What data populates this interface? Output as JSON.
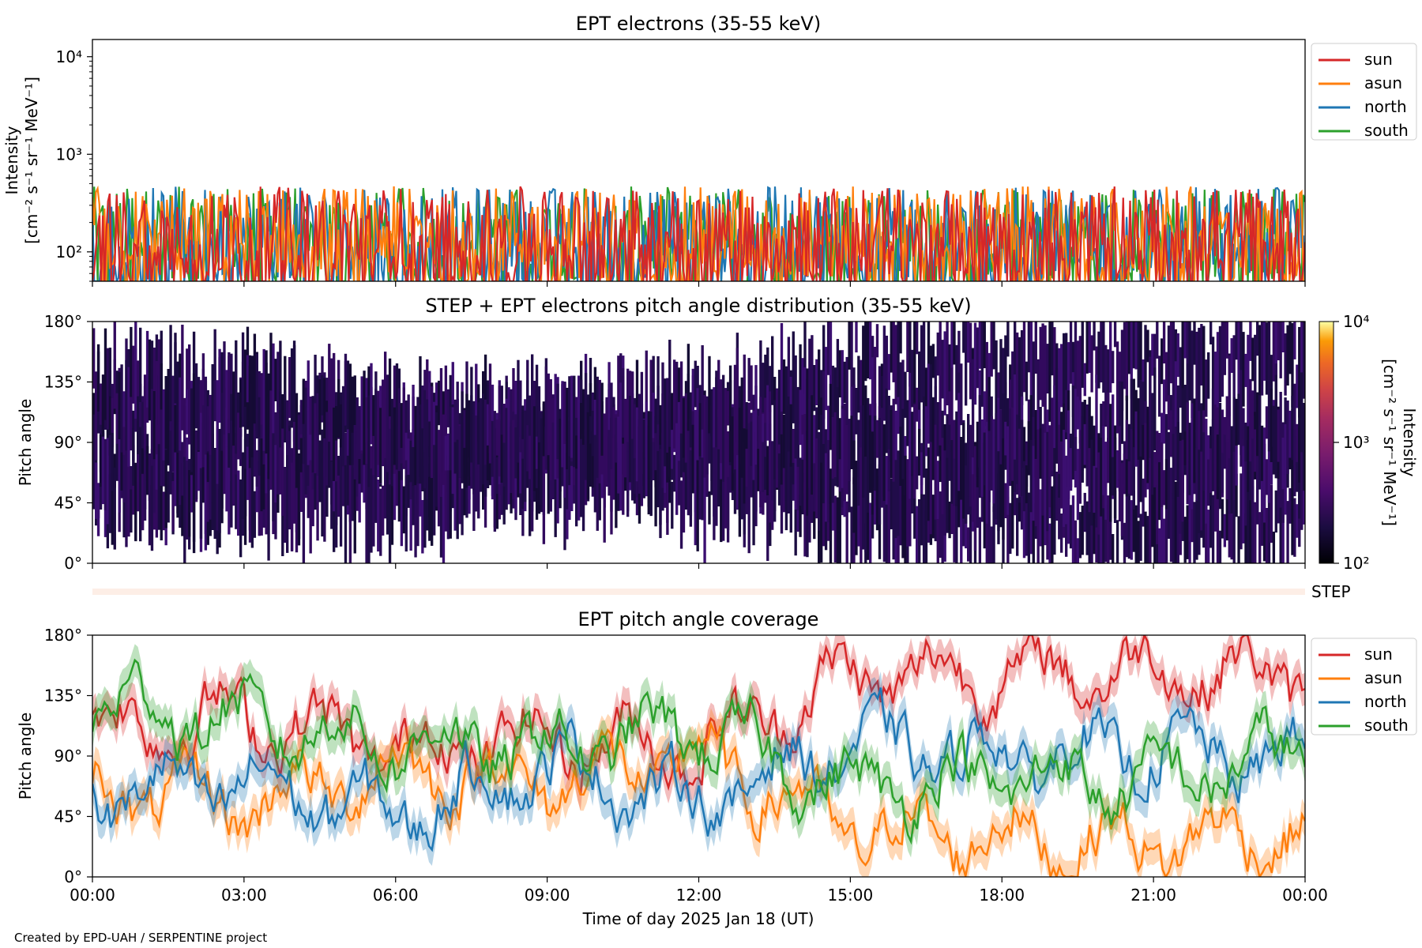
{
  "credit": "Created by EPD-UAH / SERPENTINE project",
  "xlabel": "Time of day 2025 Jan 18 (UT)",
  "x_ticks": [
    "00:00",
    "03:00",
    "06:00",
    "09:00",
    "12:00",
    "15:00",
    "18:00",
    "21:00",
    "00:00"
  ],
  "legend": [
    "sun",
    "asun",
    "north",
    "south"
  ],
  "colors": {
    "sun": "#d62728",
    "asun": "#ff7f0e",
    "north": "#1f77b4",
    "south": "#2ca02c"
  },
  "colorbar": {
    "label_line1": "Intensity",
    "label_line2": "[cm⁻² s⁻¹ sr⁻¹ MeV⁻¹]",
    "ticks": [
      "10⁴",
      "10³",
      "10²"
    ],
    "colormap": "inferno"
  },
  "step_label": "STEP",
  "chart_data": [
    {
      "type": "line",
      "title": "EPT electrons (35-55 keV)",
      "ylabel_line1": "Intensity",
      "ylabel_line2": "[cm⁻² s⁻¹ sr⁻¹ MeV⁻¹]",
      "y_scale": "log",
      "ylim": [
        50,
        15000
      ],
      "y_ticks": [
        "10⁴",
        "10³",
        "10²"
      ],
      "xlim_hours": [
        0,
        24
      ],
      "series": [
        {
          "name": "sun",
          "mean": 140,
          "typical_range": [
            50,
            600
          ]
        },
        {
          "name": "asun",
          "mean": 140,
          "typical_range": [
            50,
            600
          ]
        },
        {
          "name": "north",
          "mean": 140,
          "typical_range": [
            50,
            600
          ]
        },
        {
          "name": "south",
          "mean": 140,
          "typical_range": [
            50,
            700
          ]
        }
      ]
    },
    {
      "type": "heatmap",
      "title": "STEP + EPT electrons pitch angle distribution (35-55 keV)",
      "ylabel": "Pitch angle",
      "ylim": [
        0,
        180
      ],
      "y_ticks": [
        "180°",
        "135°",
        "90°",
        "45°",
        "0°"
      ],
      "color_scale": "log",
      "clim": [
        100,
        10000
      ],
      "typical_intensity": 150
    },
    {
      "type": "line",
      "title": "EPT pitch angle coverage",
      "ylabel": "Pitch angle",
      "ylim": [
        0,
        180
      ],
      "y_ticks": [
        "180°",
        "135°",
        "90°",
        "45°",
        "0°"
      ],
      "series": [
        {
          "name": "sun",
          "x": [
            0,
            3,
            6,
            9,
            12,
            15,
            18,
            21,
            24
          ],
          "y": [
            110,
            120,
            95,
            105,
            95,
            150,
            150,
            155,
            150
          ]
        },
        {
          "name": "asun",
          "x": [
            0,
            3,
            6,
            9,
            12,
            15,
            18,
            21,
            24
          ],
          "y": [
            65,
            55,
            80,
            70,
            90,
            35,
            30,
            25,
            35
          ]
        },
        {
          "name": "north",
          "x": [
            0,
            3,
            6,
            9,
            12,
            15,
            18,
            21,
            24
          ],
          "y": [
            60,
            70,
            45,
            85,
            55,
            100,
            90,
            95,
            85
          ]
        },
        {
          "name": "south",
          "x": [
            0,
            3,
            6,
            9,
            12,
            15,
            18,
            21,
            24
          ],
          "y": [
            130,
            115,
            100,
            95,
            110,
            65,
            75,
            70,
            95
          ]
        }
      ]
    }
  ]
}
